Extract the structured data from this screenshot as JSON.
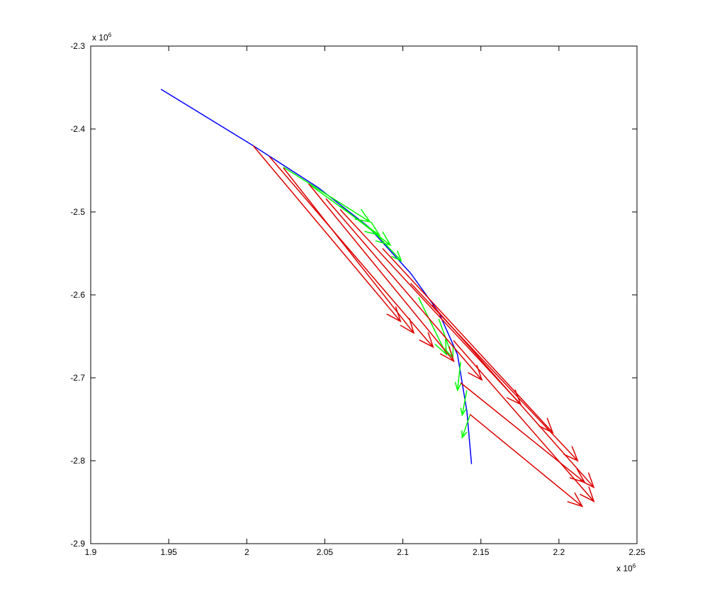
{
  "chart_data": {
    "type": "quiver",
    "xlim": [
      1.9,
      2.25
    ],
    "xticks": [
      1.9,
      1.95,
      2,
      2.05,
      2.1,
      2.15,
      2.2,
      2.25
    ],
    "ylim": [
      -2.9,
      -2.3
    ],
    "yticks": [
      -2.9,
      -2.8,
      -2.7,
      -2.6,
      -2.5,
      -2.4,
      -2.3
    ],
    "x_multiplier": {
      "base": "x 10",
      "exponent": "6"
    },
    "y_multiplier": {
      "base": "x 10",
      "exponent": "6"
    },
    "series": [
      {
        "style": "line",
        "color": "#0000ff",
        "x": [
          1.945,
          2.004,
          2.046,
          2.078,
          2.105,
          2.123,
          2.135,
          2.141,
          2.144
        ],
        "y": [
          -2.352,
          -2.42,
          -2.471,
          -2.518,
          -2.574,
          -2.621,
          -2.672,
          -2.74,
          -2.804
        ]
      },
      {
        "style": "arrows",
        "color": "#00ff00",
        "x": [
          2.0235,
          2.0396,
          2.06,
          2.083,
          2.11,
          2.123,
          2.137,
          2.141,
          2.143
        ],
        "y": [
          -2.446,
          -2.466,
          -2.493,
          -2.527,
          -2.603,
          -2.629,
          -2.681,
          -2.715,
          -2.745
        ],
        "u": [
          0.0555,
          0.0454,
          0.032,
          0.016,
          0.018,
          0.009,
          -0.002,
          -0.003,
          -0.005
        ],
        "v": [
          -0.066,
          -0.062,
          -0.047,
          -0.032,
          -0.069,
          -0.047,
          -0.034,
          -0.03,
          -0.027
        ]
      },
      {
        "style": "arrows",
        "color": "#dd0000",
        "x": [
          2.004,
          2.0144,
          2.0235,
          2.0396,
          2.0507,
          2.0598,
          2.087,
          2.105,
          2.1188,
          2.1324,
          2.1429,
          2.137
        ],
        "y": [
          -2.42,
          -2.433,
          -2.447,
          -2.466,
          -2.484,
          -2.497,
          -2.544,
          -2.586,
          -2.612,
          -2.655,
          -2.744,
          -2.706
        ],
        "u": [
          0.0945,
          0.105,
          0.0835,
          0.093,
          0.0999,
          0.1157,
          0.109,
          0.107,
          0.1035,
          0.09,
          0.072,
          0.0794
        ],
        "v": [
          -0.212,
          -0.23,
          -0.199,
          -0.214,
          -0.2185,
          -0.235,
          -0.222,
          -0.214,
          -0.22,
          -0.194,
          -0.111,
          -0.12
        ]
      }
    ]
  }
}
